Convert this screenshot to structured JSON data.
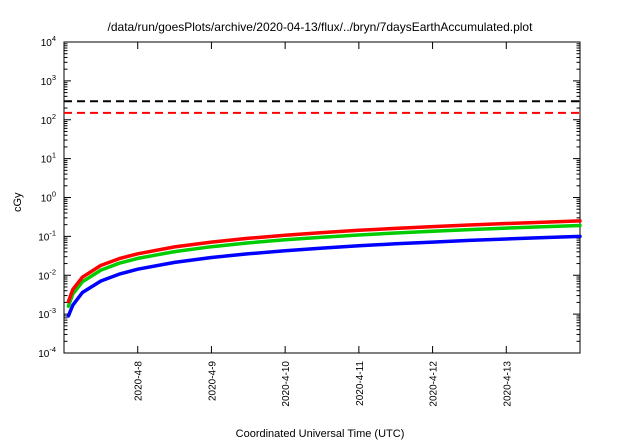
{
  "chart_data": {
    "type": "line",
    "title": "/data/run/goesPlots/archive/2020-04-13/flux/../bryn/7daysEarthAccumulated.plot",
    "xlabel": "Coordinated Universal Time (UTC)",
    "ylabel": "cGy",
    "y_scale": "log10",
    "ylim": [
      0.0001,
      10000
    ],
    "y_tick_exponents": [
      -4,
      -3,
      -2,
      -1,
      0,
      1,
      2,
      3,
      4
    ],
    "x_span_days": 7,
    "grid": "off",
    "legend": "none",
    "x_ticks": [
      {
        "t_days": 1,
        "label": "2020-4-8"
      },
      {
        "t_days": 2,
        "label": "2020-4-9"
      },
      {
        "t_days": 3,
        "label": "2020-4-10"
      },
      {
        "t_days": 4,
        "label": "2020-4-11"
      },
      {
        "t_days": 5,
        "label": "2020-4-12"
      },
      {
        "t_days": 6,
        "label": "2020-4-13"
      }
    ],
    "thresholds": [
      {
        "name": "black-limit",
        "value": 300,
        "color": "#000000",
        "style": "dashed"
      },
      {
        "name": "red-limit",
        "value": 150,
        "color": "#ff0000",
        "style": "dashed"
      }
    ],
    "t_days": [
      0.06,
      0.12,
      0.25,
      0.5,
      0.75,
      1,
      1.5,
      2,
      2.5,
      3,
      3.5,
      4,
      4.5,
      5,
      5.5,
      6,
      6.5,
      7
    ],
    "series": [
      {
        "name": "red",
        "color": "#ff0000",
        "values": [
          0.0021,
          0.0043,
          0.0089,
          0.0179,
          0.0268,
          0.0357,
          0.0536,
          0.0714,
          0.0893,
          0.1071,
          0.125,
          0.1429,
          0.1607,
          0.1786,
          0.1964,
          0.2143,
          0.2321,
          0.25
        ]
      },
      {
        "name": "green",
        "color": "#00cc00",
        "values": [
          0.0016,
          0.0033,
          0.0068,
          0.0136,
          0.0204,
          0.0271,
          0.0407,
          0.0543,
          0.0679,
          0.0814,
          0.095,
          0.1086,
          0.1221,
          0.1357,
          0.1493,
          0.1629,
          0.1764,
          0.19
        ]
      },
      {
        "name": "blue",
        "color": "#0000ff",
        "values": [
          0.0009,
          0.0017,
          0.0036,
          0.0071,
          0.0107,
          0.0143,
          0.0214,
          0.0286,
          0.0357,
          0.0429,
          0.05,
          0.0571,
          0.0643,
          0.0714,
          0.0786,
          0.0857,
          0.0929,
          0.1
        ]
      }
    ]
  }
}
